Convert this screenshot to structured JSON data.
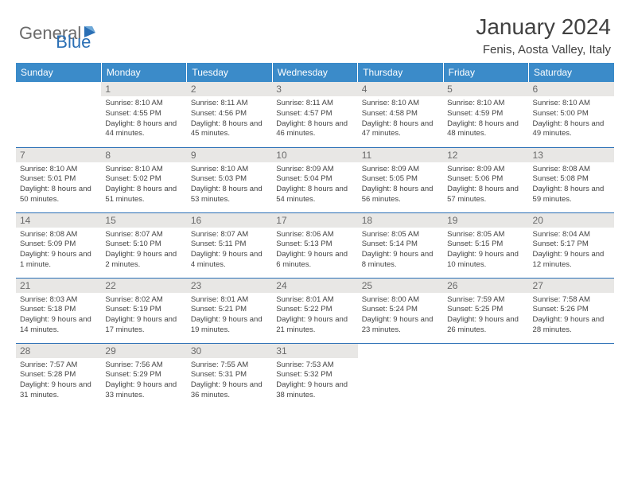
{
  "logo": {
    "general": "General",
    "blue": "Blue"
  },
  "title": "January 2024",
  "location": "Fenis, Aosta Valley, Italy",
  "colors": {
    "header_bg": "#3b8bc9",
    "header_text": "#ffffff",
    "daynum_bg": "#e8e7e5",
    "border": "#2a6fb5",
    "logo_gray": "#6b6b6b",
    "logo_blue": "#2a6fb5"
  },
  "daynames": [
    "Sunday",
    "Monday",
    "Tuesday",
    "Wednesday",
    "Thursday",
    "Friday",
    "Saturday"
  ],
  "weeks": [
    [
      {
        "n": "",
        "sr": "",
        "ss": "",
        "dl": ""
      },
      {
        "n": "1",
        "sr": "Sunrise: 8:10 AM",
        "ss": "Sunset: 4:55 PM",
        "dl": "Daylight: 8 hours and 44 minutes."
      },
      {
        "n": "2",
        "sr": "Sunrise: 8:11 AM",
        "ss": "Sunset: 4:56 PM",
        "dl": "Daylight: 8 hours and 45 minutes."
      },
      {
        "n": "3",
        "sr": "Sunrise: 8:11 AM",
        "ss": "Sunset: 4:57 PM",
        "dl": "Daylight: 8 hours and 46 minutes."
      },
      {
        "n": "4",
        "sr": "Sunrise: 8:10 AM",
        "ss": "Sunset: 4:58 PM",
        "dl": "Daylight: 8 hours and 47 minutes."
      },
      {
        "n": "5",
        "sr": "Sunrise: 8:10 AM",
        "ss": "Sunset: 4:59 PM",
        "dl": "Daylight: 8 hours and 48 minutes."
      },
      {
        "n": "6",
        "sr": "Sunrise: 8:10 AM",
        "ss": "Sunset: 5:00 PM",
        "dl": "Daylight: 8 hours and 49 minutes."
      }
    ],
    [
      {
        "n": "7",
        "sr": "Sunrise: 8:10 AM",
        "ss": "Sunset: 5:01 PM",
        "dl": "Daylight: 8 hours and 50 minutes."
      },
      {
        "n": "8",
        "sr": "Sunrise: 8:10 AM",
        "ss": "Sunset: 5:02 PM",
        "dl": "Daylight: 8 hours and 51 minutes."
      },
      {
        "n": "9",
        "sr": "Sunrise: 8:10 AM",
        "ss": "Sunset: 5:03 PM",
        "dl": "Daylight: 8 hours and 53 minutes."
      },
      {
        "n": "10",
        "sr": "Sunrise: 8:09 AM",
        "ss": "Sunset: 5:04 PM",
        "dl": "Daylight: 8 hours and 54 minutes."
      },
      {
        "n": "11",
        "sr": "Sunrise: 8:09 AM",
        "ss": "Sunset: 5:05 PM",
        "dl": "Daylight: 8 hours and 56 minutes."
      },
      {
        "n": "12",
        "sr": "Sunrise: 8:09 AM",
        "ss": "Sunset: 5:06 PM",
        "dl": "Daylight: 8 hours and 57 minutes."
      },
      {
        "n": "13",
        "sr": "Sunrise: 8:08 AM",
        "ss": "Sunset: 5:08 PM",
        "dl": "Daylight: 8 hours and 59 minutes."
      }
    ],
    [
      {
        "n": "14",
        "sr": "Sunrise: 8:08 AM",
        "ss": "Sunset: 5:09 PM",
        "dl": "Daylight: 9 hours and 1 minute."
      },
      {
        "n": "15",
        "sr": "Sunrise: 8:07 AM",
        "ss": "Sunset: 5:10 PM",
        "dl": "Daylight: 9 hours and 2 minutes."
      },
      {
        "n": "16",
        "sr": "Sunrise: 8:07 AM",
        "ss": "Sunset: 5:11 PM",
        "dl": "Daylight: 9 hours and 4 minutes."
      },
      {
        "n": "17",
        "sr": "Sunrise: 8:06 AM",
        "ss": "Sunset: 5:13 PM",
        "dl": "Daylight: 9 hours and 6 minutes."
      },
      {
        "n": "18",
        "sr": "Sunrise: 8:05 AM",
        "ss": "Sunset: 5:14 PM",
        "dl": "Daylight: 9 hours and 8 minutes."
      },
      {
        "n": "19",
        "sr": "Sunrise: 8:05 AM",
        "ss": "Sunset: 5:15 PM",
        "dl": "Daylight: 9 hours and 10 minutes."
      },
      {
        "n": "20",
        "sr": "Sunrise: 8:04 AM",
        "ss": "Sunset: 5:17 PM",
        "dl": "Daylight: 9 hours and 12 minutes."
      }
    ],
    [
      {
        "n": "21",
        "sr": "Sunrise: 8:03 AM",
        "ss": "Sunset: 5:18 PM",
        "dl": "Daylight: 9 hours and 14 minutes."
      },
      {
        "n": "22",
        "sr": "Sunrise: 8:02 AM",
        "ss": "Sunset: 5:19 PM",
        "dl": "Daylight: 9 hours and 17 minutes."
      },
      {
        "n": "23",
        "sr": "Sunrise: 8:01 AM",
        "ss": "Sunset: 5:21 PM",
        "dl": "Daylight: 9 hours and 19 minutes."
      },
      {
        "n": "24",
        "sr": "Sunrise: 8:01 AM",
        "ss": "Sunset: 5:22 PM",
        "dl": "Daylight: 9 hours and 21 minutes."
      },
      {
        "n": "25",
        "sr": "Sunrise: 8:00 AM",
        "ss": "Sunset: 5:24 PM",
        "dl": "Daylight: 9 hours and 23 minutes."
      },
      {
        "n": "26",
        "sr": "Sunrise: 7:59 AM",
        "ss": "Sunset: 5:25 PM",
        "dl": "Daylight: 9 hours and 26 minutes."
      },
      {
        "n": "27",
        "sr": "Sunrise: 7:58 AM",
        "ss": "Sunset: 5:26 PM",
        "dl": "Daylight: 9 hours and 28 minutes."
      }
    ],
    [
      {
        "n": "28",
        "sr": "Sunrise: 7:57 AM",
        "ss": "Sunset: 5:28 PM",
        "dl": "Daylight: 9 hours and 31 minutes."
      },
      {
        "n": "29",
        "sr": "Sunrise: 7:56 AM",
        "ss": "Sunset: 5:29 PM",
        "dl": "Daylight: 9 hours and 33 minutes."
      },
      {
        "n": "30",
        "sr": "Sunrise: 7:55 AM",
        "ss": "Sunset: 5:31 PM",
        "dl": "Daylight: 9 hours and 36 minutes."
      },
      {
        "n": "31",
        "sr": "Sunrise: 7:53 AM",
        "ss": "Sunset: 5:32 PM",
        "dl": "Daylight: 9 hours and 38 minutes."
      },
      {
        "n": "",
        "sr": "",
        "ss": "",
        "dl": ""
      },
      {
        "n": "",
        "sr": "",
        "ss": "",
        "dl": ""
      },
      {
        "n": "",
        "sr": "",
        "ss": "",
        "dl": ""
      }
    ]
  ]
}
